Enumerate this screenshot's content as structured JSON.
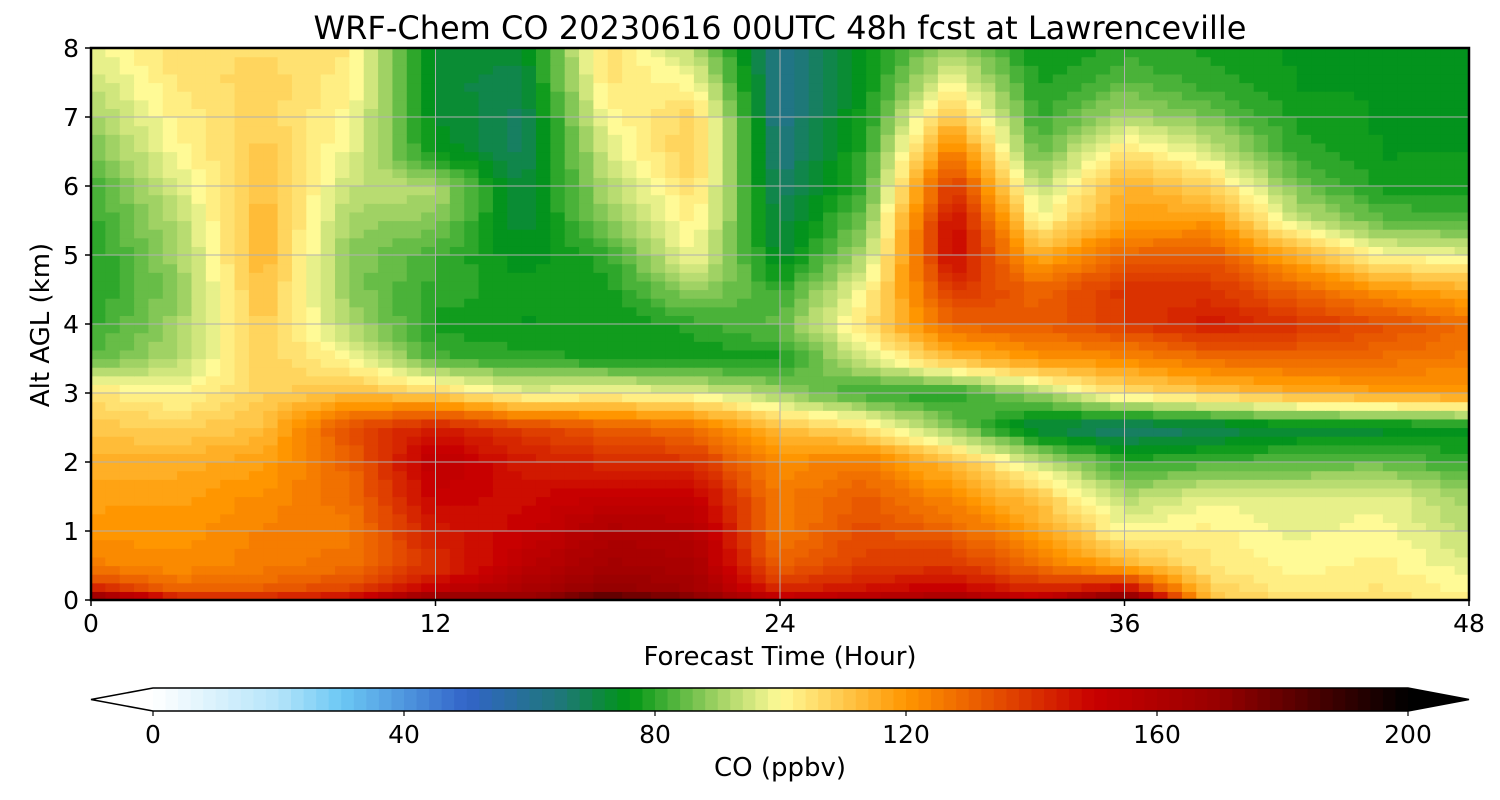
{
  "chart_data": {
    "type": "heatmap",
    "title": "WRF-Chem CO  20230616 00UTC 48h fcst at Lawrenceville",
    "xlabel": "Forecast Time (Hour)",
    "ylabel": "Alt AGL (km)",
    "xlim": [
      0,
      48
    ],
    "ylim": [
      0,
      8
    ],
    "x_ticks": [
      "0",
      "12",
      "24",
      "36",
      "48"
    ],
    "y_ticks": [
      "0",
      "1",
      "2",
      "3",
      "4",
      "5",
      "6",
      "7",
      "8"
    ],
    "grid": true,
    "colorbar": {
      "label": "CO  (ppbv)",
      "range": [
        0,
        200
      ],
      "ticks": [
        "0",
        "40",
        "80",
        "120",
        "160",
        "200"
      ],
      "extend": "both",
      "colors": {
        "0": "#ffffff",
        "20": "#b4e4fa",
        "30": "#6cc8f4",
        "50": "#3264c8",
        "65": "#1e7878",
        "76": "#009614",
        "90": "#a0d264",
        "100": "#fffa96",
        "120": "#ff9600",
        "150": "#c80000",
        "170": "#960000",
        "200": "#000000"
      }
    },
    "heights_km": [
      0,
      0.2,
      0.5,
      1,
      1.5,
      2,
      2.5,
      3,
      3.5,
      4,
      4.5,
      5,
      5.5,
      6,
      6.5,
      7,
      7.5,
      8
    ],
    "hours": [
      0,
      3,
      6,
      9,
      12,
      15,
      18,
      21,
      24,
      27,
      30,
      33,
      36,
      39,
      42,
      45,
      48
    ],
    "co_ppbv": [
      [
        180,
        145,
        145,
        150,
        175,
        170,
        185,
        175,
        155,
        160,
        165,
        155,
        185,
        110,
        105,
        105,
        102
      ],
      [
        140,
        128,
        130,
        135,
        150,
        160,
        170,
        165,
        140,
        145,
        150,
        140,
        145,
        108,
        102,
        104,
        100
      ],
      [
        125,
        122,
        125,
        128,
        140,
        155,
        165,
        162,
        130,
        138,
        140,
        128,
        115,
        104,
        100,
        102,
        97
      ],
      [
        120,
        120,
        124,
        125,
        145,
        150,
        160,
        158,
        125,
        135,
        130,
        118,
        100,
        102,
        98,
        100,
        93
      ],
      [
        118,
        118,
        122,
        128,
        150,
        148,
        152,
        152,
        125,
        132,
        122,
        110,
        92,
        98,
        96,
        98,
        90
      ],
      [
        115,
        115,
        118,
        130,
        155,
        145,
        142,
        140,
        122,
        125,
        112,
        95,
        80,
        82,
        84,
        85,
        80
      ],
      [
        110,
        108,
        112,
        135,
        145,
        138,
        132,
        128,
        112,
        105,
        88,
        70,
        65,
        68,
        72,
        72,
        75
      ],
      [
        105,
        100,
        108,
        112,
        108,
        98,
        100,
        98,
        90,
        80,
        78,
        90,
        105,
        110,
        115,
        118,
        120
      ],
      [
        84,
        92,
        108,
        100,
        82,
        80,
        78,
        76,
        78,
        95,
        112,
        120,
        122,
        128,
        130,
        128,
        125
      ],
      [
        80,
        90,
        110,
        92,
        78,
        76,
        76,
        80,
        85,
        105,
        130,
        132,
        138,
        145,
        140,
        135,
        128
      ],
      [
        78,
        88,
        112,
        88,
        80,
        78,
        78,
        90,
        80,
        100,
        140,
        130,
        140,
        140,
        130,
        120,
        115
      ],
      [
        78,
        90,
        114,
        88,
        82,
        74,
        80,
        100,
        72,
        92,
        150,
        115,
        130,
        132,
        115,
        100,
        98
      ],
      [
        80,
        92,
        114,
        90,
        88,
        72,
        88,
        102,
        70,
        86,
        150,
        100,
        118,
        120,
        95,
        84,
        82
      ],
      [
        82,
        96,
        112,
        94,
        92,
        70,
        92,
        106,
        66,
        82,
        140,
        92,
        115,
        108,
        86,
        78,
        78
      ],
      [
        86,
        100,
        110,
        98,
        76,
        68,
        96,
        110,
        64,
        80,
        126,
        84,
        105,
        96,
        80,
        76,
        76
      ],
      [
        90,
        102,
        108,
        100,
        74,
        68,
        100,
        108,
        62,
        78,
        112,
        80,
        92,
        86,
        78,
        76,
        75
      ],
      [
        94,
        104,
        108,
        102,
        72,
        70,
        104,
        100,
        62,
        76,
        100,
        78,
        84,
        80,
        76,
        76,
        75
      ],
      [
        98,
        106,
        106,
        104,
        72,
        72,
        106,
        92,
        62,
        76,
        90,
        76,
        80,
        78,
        76,
        76,
        75
      ]
    ]
  }
}
